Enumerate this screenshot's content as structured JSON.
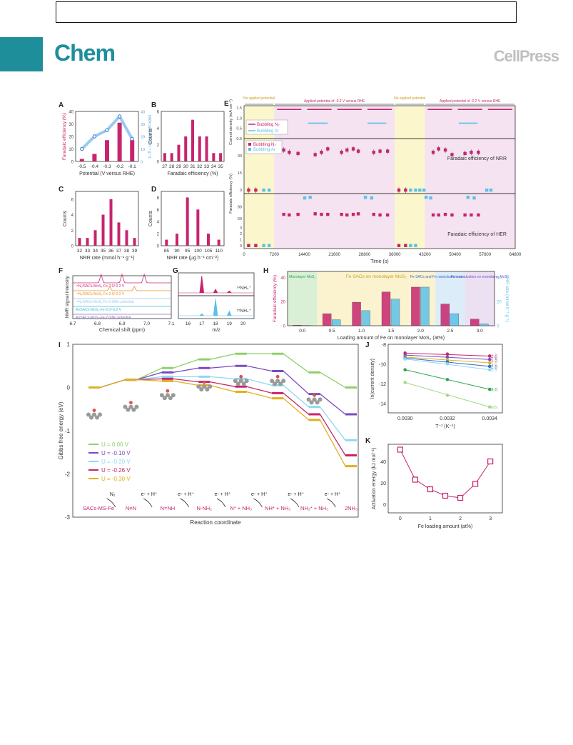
{
  "header": {
    "journal": "Chem",
    "publisher": "CellPress"
  },
  "panel_letters": {
    "A": "A",
    "B": "B",
    "C": "C",
    "D": "D",
    "E": "E",
    "F": "F",
    "G": "G",
    "H": "H",
    "I": "I",
    "J": "J",
    "K": "K"
  },
  "chart_data": [
    {
      "id": "A",
      "type": "bar+line",
      "xlabel": "Potential (V versus RHE)",
      "ylabel": "Faradaic efficiency (%)",
      "y2label": "NRR rate (mmol h⁻¹ g⁻¹)",
      "categories": [
        "-0.5",
        "-0.4",
        "-0.3",
        "-0.2",
        "-0.1"
      ],
      "ylim": [
        0,
        40
      ],
      "y_ticks": [
        "0",
        "10",
        "20",
        "30",
        "40"
      ],
      "y2lim": [
        0,
        40
      ],
      "y2_ticks": [
        "0",
        "10",
        "20",
        "30",
        "40"
      ],
      "bars": [
        2,
        6,
        17,
        31,
        17
      ],
      "line": [
        10,
        20,
        25,
        36,
        18
      ]
    },
    {
      "id": "B",
      "type": "bar",
      "xlabel": "Faradaic efficiency (%)",
      "ylabel": "Counts",
      "categories": [
        "27",
        "28",
        "29",
        "30",
        "31",
        "32",
        "33",
        "34",
        "35"
      ],
      "values": [
        1,
        1,
        2,
        3,
        5,
        3,
        3,
        1,
        1
      ],
      "ylim": [
        0,
        6
      ],
      "y_ticks": [
        "0",
        "2",
        "4",
        "6"
      ]
    },
    {
      "id": "C",
      "type": "bar",
      "xlabel": "NRR rate (mmol h⁻¹ g⁻¹)",
      "ylabel": "Counts",
      "categories": [
        "32",
        "33",
        "34",
        "35",
        "36",
        "37",
        "38",
        "39"
      ],
      "values": [
        1,
        1,
        2,
        4,
        6,
        3,
        2,
        1
      ],
      "ylim": [
        0,
        7
      ],
      "y_ticks": [
        "0",
        "2",
        "4",
        "6"
      ]
    },
    {
      "id": "D",
      "type": "bar",
      "xlabel": "NRR rate (μg h⁻¹ cm⁻²)",
      "ylabel": "Counts",
      "categories": [
        "85",
        "90",
        "95",
        "100",
        "105",
        "110"
      ],
      "values": [
        1,
        2,
        8,
        6,
        2,
        1
      ],
      "ylim": [
        0,
        9
      ],
      "y_ticks": [
        "0",
        "2",
        "4",
        "6",
        "8"
      ]
    },
    {
      "id": "E",
      "type": "line+scatter",
      "xlabel": "Time (s)",
      "x_ticks": [
        "0",
        "7200",
        "14400",
        "21600",
        "28800",
        "36000",
        "43200",
        "50400",
        "57600",
        "64800"
      ],
      "xlim": [
        0,
        64800
      ],
      "regions": [
        {
          "label": "No applied potential",
          "from": 0,
          "to": 7200,
          "color": "#fbf6cc"
        },
        {
          "label": "Applied potential of -0.2 V versus RHE",
          "from": 7200,
          "to": 36000,
          "color": "#f5e3f1"
        },
        {
          "label": "No applied potential",
          "from": 36000,
          "to": 43200,
          "color": "#fbf6cc"
        },
        {
          "label": "Applied potential of -0.2 V versus RHE",
          "from": 43200,
          "to": 64800,
          "color": "#f5e3f1"
        }
      ],
      "top": {
        "ylabel": "Current density (mA cm⁻²)",
        "y_ticks": [
          "0.0",
          "0.5",
          "1.0",
          "1.5"
        ],
        "ylim": [
          0,
          1.6
        ],
        "legend": [
          "Bubbling N₂",
          "Bubbling Ar"
        ],
        "n2_segments": [
          [
            7200,
            14400,
            1.42
          ],
          [
            14400,
            21600,
            1.42
          ],
          [
            21600,
            28800,
            1.42
          ],
          [
            28800,
            36000,
            1.42
          ],
          [
            43200,
            50400,
            1.42
          ],
          [
            50400,
            57600,
            1.42
          ],
          [
            57600,
            64800,
            1.42
          ]
        ],
        "ar_segments": [
          [
            15300,
            20000,
            0.75
          ],
          [
            29500,
            34000,
            0.75
          ],
          [
            51300,
            55800,
            0.75
          ]
        ]
      },
      "middle": {
        "ylabel": "Faradaic efficiency (%)",
        "y_ticks": [
          "0",
          "15",
          "30"
        ],
        "ylim": [
          -3,
          45
        ],
        "legend": [
          "Bubbling N₂",
          "Bubbling Ar"
        ],
        "note": "Faradaic efficiency of NRR",
        "n2": [
          [
            1100,
            0
          ],
          [
            2800,
            0
          ],
          [
            9500,
            35
          ],
          [
            10800,
            33
          ],
          [
            12900,
            32
          ],
          [
            17000,
            31
          ],
          [
            18500,
            33
          ],
          [
            20000,
            36
          ],
          [
            23300,
            33
          ],
          [
            24600,
            35
          ],
          [
            26100,
            36
          ],
          [
            27300,
            34
          ],
          [
            31000,
            33
          ],
          [
            32500,
            34
          ],
          [
            34300,
            34
          ],
          [
            37000,
            0
          ],
          [
            38600,
            0
          ],
          [
            45200,
            33
          ],
          [
            46500,
            36
          ],
          [
            48100,
            35
          ],
          [
            49700,
            31
          ],
          [
            52800,
            32
          ],
          [
            54300,
            33
          ],
          [
            56000,
            33
          ]
        ],
        "ar": [
          [
            4700,
            0
          ],
          [
            6000,
            0
          ],
          [
            39800,
            0
          ],
          [
            41000,
            0
          ],
          [
            42000,
            0
          ],
          [
            43000,
            0
          ],
          [
            58000,
            0
          ],
          [
            59000,
            0
          ]
        ]
      },
      "bottom": {
        "ylabel": "Faradaic efficiency (%)",
        "y_ticks": [
          "0",
          "1",
          "2",
          "3",
          "60",
          "80"
        ],
        "note": "Faradaic efficiency of HER",
        "n2": [
          [
            1100,
            0
          ],
          [
            2800,
            0
          ],
          [
            9500,
            67
          ],
          [
            10800,
            66
          ],
          [
            12900,
            67
          ],
          [
            17000,
            68
          ],
          [
            18500,
            67
          ],
          [
            20000,
            67
          ],
          [
            23300,
            67
          ],
          [
            24600,
            66
          ],
          [
            26100,
            67
          ],
          [
            27300,
            68
          ],
          [
            31000,
            67
          ],
          [
            32500,
            66
          ],
          [
            34300,
            66
          ],
          [
            37000,
            0
          ],
          [
            38600,
            0
          ],
          [
            45200,
            66
          ],
          [
            46500,
            66
          ],
          [
            48100,
            67
          ],
          [
            49700,
            66
          ],
          [
            52800,
            66
          ],
          [
            54300,
            66
          ],
          [
            56000,
            66
          ]
        ],
        "ar": [
          [
            4700,
            0
          ],
          [
            6000,
            0
          ],
          [
            14500,
            95
          ],
          [
            15800,
            96
          ],
          [
            29000,
            96
          ],
          [
            30500,
            95
          ],
          [
            39800,
            0
          ],
          [
            41000,
            0
          ],
          [
            43500,
            96
          ],
          [
            44600,
            95
          ],
          [
            53500,
            96
          ],
          [
            55000,
            95
          ]
        ]
      }
    },
    {
      "id": "F",
      "type": "line",
      "xlabel": "Chemical shift (ppm)",
      "ylabel": "NMR signal intensity",
      "x_ticks": [
        "6.7",
        "6.8",
        "6.9",
        "7.0",
        "7.1"
      ],
      "xlim": [
        6.7,
        7.1
      ],
      "series": [
        {
          "name": "¹⁵N₂/SACs-MoS₂-Fe-2.0/-0.2 V",
          "color": "#cc2a7a"
        },
        {
          "name": "¹⁴N₂/SACs-MoS₂-Fe-2.0/-0.2 V",
          "color": "#e6922b"
        },
        {
          "name": "¹⁵N₂/SACs-MoS₂-Fe-2.0/No potential",
          "color": "#9bc8e4"
        },
        {
          "name": "Ar/SACs-MoS₂-Fe-2.0/-0.2 V",
          "color": "#3fb9d9"
        },
        {
          "name": "Ar/SACs-MoS₂-Fe-2.0/No potential",
          "color": "#8a6fbf"
        }
      ]
    },
    {
      "id": "G",
      "type": "line",
      "xlabel": "m/z",
      "x_ticks": [
        "16",
        "17",
        "18",
        "19",
        "20"
      ],
      "xlim": [
        15.3,
        20.8
      ],
      "series": [
        {
          "name": "¹⁴NH₄⁺",
          "color": "#c8246e",
          "peaks": [
            [
              17,
              1.0
            ],
            [
              18,
              0.22
            ],
            [
              19,
              0.12
            ]
          ]
        },
        {
          "name": "¹⁵NH₄⁺",
          "color": "#5cc0e8",
          "peaks": [
            [
              18,
              1.0
            ],
            [
              17,
              0.12
            ],
            [
              19,
              0.28
            ]
          ]
        }
      ]
    },
    {
      "id": "H",
      "type": "bar",
      "xlabel": "Loading amount of Fe on monolayer MoS₂ (at%)",
      "ylabel": "Faradaic efficiency (%)",
      "y2label": "NRR rate (mmol h⁻¹ g⁻¹)",
      "categories": [
        "0.0",
        "0.5",
        "1.0",
        "1.5",
        "2.0",
        "2.5",
        "3.0"
      ],
      "ylim": [
        0,
        45
      ],
      "y_ticks": [
        "0",
        "20",
        "40"
      ],
      "y2_ticks": [
        "0",
        "20",
        "40"
      ],
      "regions": [
        {
          "label": "Monolayer MoS₂",
          "color": "#d9f0d6"
        },
        {
          "label": "Fe SACs on monolayer MoS₂",
          "color": "#fbf3cf"
        },
        {
          "label": "Fe SACs and Fe nanoclusters on monolayer MoS₂",
          "color": "#dcecf8"
        },
        {
          "label": "Fe nanoclusters on monolayer MoS₂",
          "color": "#ece0f3"
        }
      ],
      "series": [
        {
          "name": "Faradaic efficiency",
          "values": [
            0.5,
            10,
            19.5,
            28,
            32,
            18,
            5.5
          ],
          "color": "#c8246e"
        },
        {
          "name": "NRR rate",
          "values": [
            0.3,
            5,
            12.5,
            22,
            32,
            10,
            1.5
          ],
          "color": "#5cc0e8"
        }
      ]
    },
    {
      "id": "I",
      "type": "line",
      "xlabel": "Reaction coordinate",
      "ylabel": "Gibbs free energy (eV)",
      "ylim": [
        -3,
        1
      ],
      "y_ticks": [
        "1",
        "0",
        "-1",
        "-2",
        "-3"
      ],
      "steps": [
        "SACs-MS-Fe",
        "N≡N",
        "N=NH",
        "N-NH₂",
        "N* + NH₃",
        "NH* + NH₃",
        "NH₂* + NH₃",
        "2NH₃"
      ],
      "arrow_labels": [
        "N₂",
        "e- + H⁺",
        "e- + H⁺",
        "e- + H⁺",
        "e- + H⁺",
        "e- + H⁺",
        "e- + H⁺"
      ],
      "series": [
        {
          "name": "U = 0.00 V",
          "color": "#8fd06a",
          "values": [
            0,
            0.18,
            0.45,
            0.65,
            0.78,
            0.78,
            0.35,
            0.0
          ]
        },
        {
          "name": "U = -0.10 V",
          "color": "#7a4bc0",
          "values": [
            0,
            0.18,
            0.35,
            0.45,
            0.5,
            0.38,
            -0.15,
            -0.62
          ]
        },
        {
          "name": "U = -0.20 V",
          "color": "#8fd8f0",
          "values": [
            0,
            0.18,
            0.25,
            0.25,
            0.2,
            0.05,
            -0.45,
            -1.22
          ]
        },
        {
          "name": "U = -0.26 V",
          "color": "#c8246e",
          "values": [
            0,
            0.18,
            0.2,
            0.13,
            0.02,
            -0.13,
            -0.62,
            -1.57
          ]
        },
        {
          "name": "U = -0.30 V",
          "color": "#e0b020",
          "values": [
            0,
            0.18,
            0.15,
            0.05,
            -0.1,
            -0.25,
            -0.75,
            -1.82
          ]
        }
      ]
    },
    {
      "id": "J",
      "type": "line+scatter",
      "xlabel": "T⁻¹ (K⁻¹)",
      "ylabel": "ln(current density)",
      "xlim": [
        0.00292,
        0.00346
      ],
      "x_ticks": [
        "0.0030",
        "0.0032",
        "0.0034"
      ],
      "ylim": [
        -15,
        -8
      ],
      "y_ticks": [
        "-8",
        "-10",
        "-12",
        "-14"
      ],
      "x_points": [
        0.003,
        0.0031,
        0.0032,
        0.0033,
        0.0034
      ],
      "series": [
        {
          "name": "2.0",
          "color": "#c8246e",
          "values": [
            -8.9,
            -8.95,
            -9.0,
            -9.1,
            -9.2
          ]
        },
        {
          "name": "1.5",
          "color": "#7a4bc0",
          "values": [
            -9.1,
            -9.2,
            -9.3,
            -9.4,
            -9.55
          ]
        },
        {
          "name": "1.0",
          "color": "#e0b020",
          "values": [
            -9.3,
            -9.45,
            -9.6,
            -9.75,
            -9.9
          ]
        },
        {
          "name": "2.5",
          "color": "#2d6fd0",
          "values": [
            -9.4,
            -9.6,
            -9.8,
            -10.0,
            -10.25
          ]
        },
        {
          "name": "0.5",
          "color": "#8fd8f0",
          "values": [
            -9.5,
            -9.75,
            -10.0,
            -10.3,
            -10.6
          ]
        },
        {
          "name": "3.0",
          "color": "#2ea44f",
          "values": [
            -10.6,
            -11.1,
            -11.6,
            -12.1,
            -12.6
          ]
        },
        {
          "name": "MS",
          "color": "#a4d88a",
          "values": [
            -11.9,
            -12.6,
            -13.2,
            -13.8,
            -14.4
          ]
        }
      ]
    },
    {
      "id": "K",
      "type": "line",
      "xlabel": "Fe loading amount (at%)",
      "ylabel": "Activation energy (kJ mol⁻¹)",
      "xlim": [
        -0.4,
        3.4
      ],
      "x_ticks": [
        "0",
        "1",
        "2",
        "3"
      ],
      "ylim": [
        -8,
        56
      ],
      "y_ticks": [
        "0",
        "20",
        "40"
      ],
      "x": [
        0,
        0.5,
        1,
        1.5,
        2,
        2.5,
        3
      ],
      "values": [
        51,
        23,
        14,
        8,
        6,
        19,
        40
      ],
      "color": "#c8246e"
    }
  ]
}
